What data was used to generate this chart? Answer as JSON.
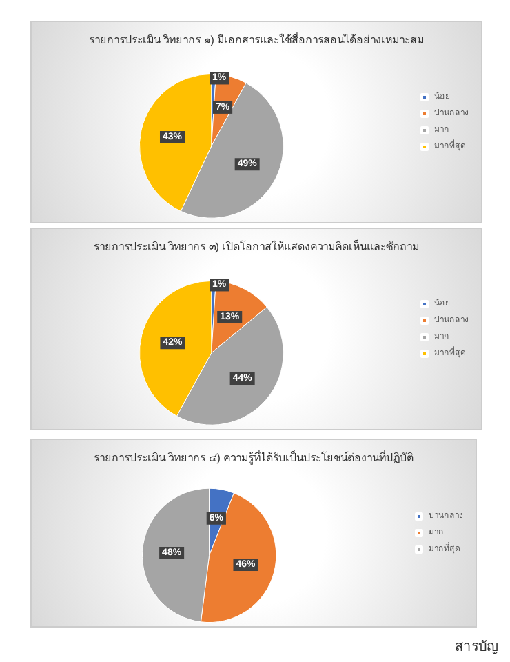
{
  "chart_data": [
    {
      "type": "pie",
      "title": "รายการประเมิน วิทยากร ๑) มีเอกสารและใช้สื่อการสอนได้อย่างเหมาะสม",
      "categories": [
        "น้อย",
        "ปานกลาง",
        "มาก",
        "มากที่สุด"
      ],
      "values": [
        1,
        7,
        49,
        43
      ],
      "value_labels": [
        "1%",
        "7%",
        "49%",
        "43%"
      ],
      "colors": [
        "#4472c4",
        "#ed7d31",
        "#a5a5a5",
        "#ffc000"
      ],
      "legend": "right"
    },
    {
      "type": "pie",
      "title": "รายการประเมิน วิทยากร ๓) เปิดโอกาสให้แสดงความคิดเห็นและซักถาม",
      "categories": [
        "น้อย",
        "ปานกลาง",
        "มาก",
        "มากที่สุด"
      ],
      "values": [
        1,
        13,
        44,
        42
      ],
      "value_labels": [
        "1%",
        "13%",
        "44%",
        "42%"
      ],
      "colors": [
        "#4472c4",
        "#ed7d31",
        "#a5a5a5",
        "#ffc000"
      ],
      "legend": "right"
    },
    {
      "type": "pie",
      "title": "รายการประเมิน วิทยากร ๔) ความรู้ที่ได้รับเป็นประโยชน์ต่องานที่ปฏิบัติ",
      "categories": [
        "ปานกลาง",
        "มาก",
        "มากที่สุด"
      ],
      "values": [
        6,
        46,
        48
      ],
      "value_labels": [
        "6%",
        "46%",
        "48%"
      ],
      "colors": [
        "#4472c4",
        "#ed7d31",
        "#a5a5a5"
      ],
      "legend": "right",
      "annotations": [
        "สารบัญ"
      ]
    }
  ]
}
